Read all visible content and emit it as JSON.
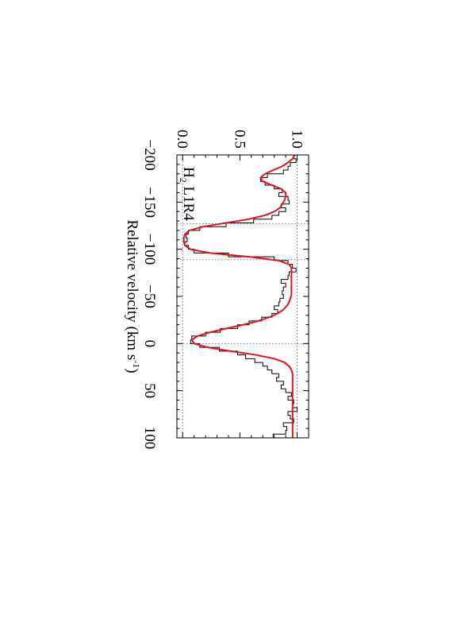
{
  "chart_data": {
    "type": "line",
    "orientation": "rotated 90 degrees clockwise",
    "annotation": "H",
    "annotation_sub": "2",
    "annotation_rest": " L1R4",
    "xlabel": "Relative velocity (km s",
    "xlabel_sup": "-1",
    "xlabel_end": ")",
    "ylabel": "",
    "xlim": [
      -200,
      100
    ],
    "ylim": [
      -0.05,
      1.1
    ],
    "x_ticks": [
      {
        "value": -200,
        "label": "−200"
      },
      {
        "value": -150,
        "label": "−150"
      },
      {
        "value": -100,
        "label": "−100"
      },
      {
        "value": -50,
        "label": "−50"
      },
      {
        "value": 0,
        "label": "0"
      },
      {
        "value": 50,
        "label": "50"
      },
      {
        "value": 100,
        "label": "100"
      }
    ],
    "y_ticks": [
      {
        "value": 0.0,
        "label": "0.0"
      },
      {
        "value": 0.5,
        "label": "0.5"
      },
      {
        "value": 1.0,
        "label": "1.0"
      }
    ],
    "reference_lines": {
      "vertical_velocities": [
        -127,
        -89,
        0
      ],
      "horizontal_levels": [
        0.0,
        1.0
      ],
      "color": "#6b6bd6"
    },
    "series": [
      {
        "role": "observed",
        "style": "histogram",
        "color": "#000000",
        "x": [
          -200,
          -196,
          -192,
          -188,
          -184,
          -180,
          -176,
          -172,
          -168,
          -164,
          -160,
          -156,
          -152,
          -148,
          -144,
          -140,
          -136,
          -132,
          -128,
          -124,
          -120,
          -116,
          -112,
          -108,
          -104,
          -100,
          -96,
          -92,
          -88,
          -84,
          -80,
          -76,
          -72,
          -68,
          -64,
          -60,
          -56,
          -52,
          -48,
          -44,
          -40,
          -36,
          -32,
          -28,
          -24,
          -20,
          -16,
          -12,
          -8,
          -4,
          0,
          4,
          8,
          12,
          16,
          20,
          24,
          28,
          32,
          36,
          40,
          44,
          48,
          52,
          56,
          60,
          64,
          68,
          72,
          76,
          80,
          84,
          88,
          92,
          96,
          100
        ],
        "y": [
          0.97,
          0.99,
          0.94,
          0.92,
          0.88,
          0.74,
          0.68,
          0.72,
          0.8,
          0.87,
          0.84,
          0.92,
          0.93,
          0.86,
          0.9,
          0.84,
          0.78,
          0.62,
          0.38,
          0.15,
          0.05,
          0.03,
          0.04,
          0.02,
          0.05,
          0.1,
          0.4,
          0.8,
          0.92,
          0.96,
          0.99,
          0.93,
          0.92,
          0.86,
          0.9,
          0.88,
          0.87,
          0.88,
          0.85,
          0.84,
          0.8,
          0.83,
          0.78,
          0.69,
          0.58,
          0.48,
          0.33,
          0.2,
          0.08,
          0.07,
          0.15,
          0.32,
          0.48,
          0.55,
          0.63,
          0.7,
          0.74,
          0.78,
          0.84,
          0.82,
          0.88,
          0.86,
          0.9,
          0.95,
          0.92,
          0.97,
          0.96,
          1.0,
          0.92,
          0.94,
          0.97,
          0.88,
          0.91,
          0.9,
          0.79,
          0.79
        ]
      },
      {
        "role": "model fit",
        "style": "smooth",
        "color": "#e0141e",
        "x": [
          -200,
          -196,
          -192,
          -188,
          -184,
          -180,
          -176,
          -172,
          -168,
          -164,
          -160,
          -156,
          -152,
          -148,
          -144,
          -140,
          -136,
          -132,
          -128,
          -124,
          -120,
          -116,
          -112,
          -108,
          -104,
          -100,
          -96,
          -92,
          -88,
          -84,
          -80,
          -76,
          -72,
          -68,
          -64,
          -60,
          -56,
          -52,
          -48,
          -44,
          -40,
          -36,
          -32,
          -28,
          -24,
          -20,
          -16,
          -12,
          -8,
          -4,
          0,
          4,
          8,
          12,
          16,
          20,
          24,
          28,
          32,
          36,
          40,
          44,
          48,
          52,
          56,
          60,
          64,
          68,
          72,
          76,
          80,
          84,
          88,
          92,
          96,
          100
        ],
        "y": [
          0.98,
          0.96,
          0.92,
          0.87,
          0.79,
          0.72,
          0.68,
          0.7,
          0.78,
          0.86,
          0.9,
          0.9,
          0.89,
          0.87,
          0.85,
          0.8,
          0.72,
          0.58,
          0.38,
          0.18,
          0.06,
          0.02,
          0.01,
          0.01,
          0.02,
          0.07,
          0.24,
          0.58,
          0.84,
          0.93,
          0.95,
          0.95,
          0.95,
          0.95,
          0.95,
          0.95,
          0.95,
          0.95,
          0.94,
          0.93,
          0.91,
          0.88,
          0.83,
          0.76,
          0.66,
          0.53,
          0.38,
          0.24,
          0.13,
          0.08,
          0.1,
          0.22,
          0.42,
          0.64,
          0.8,
          0.89,
          0.93,
          0.95,
          0.96,
          0.96,
          0.96,
          0.96,
          0.96,
          0.96,
          0.96,
          0.96,
          0.96,
          0.96,
          0.96,
          0.96,
          0.96,
          0.96,
          0.96,
          0.96,
          0.96,
          0.96
        ]
      }
    ]
  }
}
